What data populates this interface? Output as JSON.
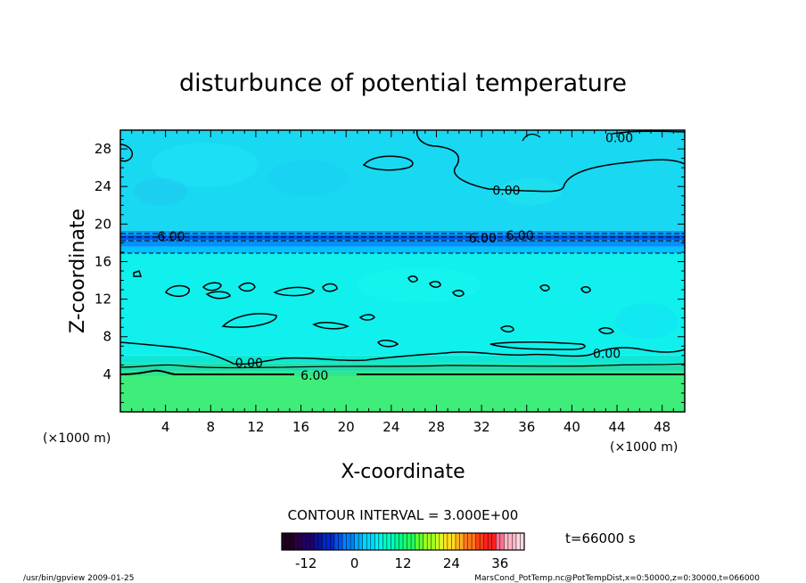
{
  "chart_data": {
    "type": "heatmap",
    "title": "disturbunce of potential temperature",
    "xlabel": "X-coordinate",
    "ylabel": "Z-coordinate",
    "x_unit": "(×1000 m)",
    "y_unit": "(×1000 m)",
    "xlim": [
      0,
      50
    ],
    "ylim": [
      0,
      30
    ],
    "x_ticks": [
      4,
      8,
      12,
      16,
      20,
      24,
      28,
      32,
      36,
      40,
      44,
      48
    ],
    "y_ticks": [
      4,
      8,
      12,
      16,
      20,
      24,
      28
    ],
    "contour_interval_text": "CONTOUR INTERVAL = 3.000E+00",
    "time_text": "t=66000 s",
    "colorbar": {
      "min": -18,
      "max": 42,
      "ticks": [
        -12,
        0,
        12,
        24,
        36
      ],
      "colors": [
        "#200020",
        "#2a0040",
        "#20006a",
        "#10109a",
        "#0028c8",
        "#0050ea",
        "#0080ff",
        "#00b0ff",
        "#00d8ff",
        "#00f4f0",
        "#00ffc0",
        "#00ff90",
        "#20ff60",
        "#60ff30",
        "#a0ff20",
        "#d8ff20",
        "#ffe020",
        "#ffb020",
        "#ff7818",
        "#ff4010",
        "#ff2020",
        "#ff7090",
        "#ffb8c8",
        "#ffd8e0"
      ]
    },
    "bands": [
      {
        "z_range": [
          0,
          3.8
        ],
        "value": 9,
        "color": "#3fee7a"
      },
      {
        "z_range": [
          3.8,
          4.3
        ],
        "value": 7,
        "color": "#2fe58e"
      },
      {
        "z_range": [
          4.3,
          5.2
        ],
        "value": 5,
        "color": "#22dcaa"
      },
      {
        "z_range": [
          5.2,
          6.0
        ],
        "value": 2,
        "color": "#10e6d4"
      },
      {
        "z_range": [
          6.0,
          16.9
        ],
        "value": 1,
        "color": "#10f0ec"
      },
      {
        "z_range": [
          16.9,
          17.6
        ],
        "value": -3,
        "color": "#00c2ff"
      },
      {
        "z_range": [
          17.6,
          18.3
        ],
        "value": -6,
        "color": "#0090ff"
      },
      {
        "z_range": [
          18.3,
          18.8
        ],
        "value": -8,
        "color": "#0060ee"
      },
      {
        "z_range": [
          18.8,
          19.3
        ],
        "value": -5,
        "color": "#00a0ff"
      },
      {
        "z_range": [
          19.3,
          30
        ],
        "value": 1,
        "color": "#18d8f2"
      }
    ],
    "contour_labels": [
      {
        "text": "0.00",
        "x": 44.2,
        "z": 29.2
      },
      {
        "text": "0.00",
        "x": 34.2,
        "z": 23.6
      },
      {
        "text": "6.00",
        "x": 4.5,
        "z": 18.7
      },
      {
        "text": "6.00",
        "x": 32.1,
        "z": 18.5
      },
      {
        "text": "6.00",
        "x": 35.4,
        "z": 18.8
      },
      {
        "text": "0.00",
        "x": 11.4,
        "z": 5.2
      },
      {
        "text": "0.00",
        "x": 43.1,
        "z": 6.2
      },
      {
        "text": "6.00",
        "x": 17.2,
        "z": 3.9
      }
    ]
  },
  "footer": {
    "left": "/usr/bin/gpview   2009-01-25",
    "right": "MarsCond_PotTemp.nc@PotTempDist,x=0:50000,z=0:30000,t=066000"
  },
  "colors": {
    "axis": "#000000",
    "background": "#ffffff"
  }
}
